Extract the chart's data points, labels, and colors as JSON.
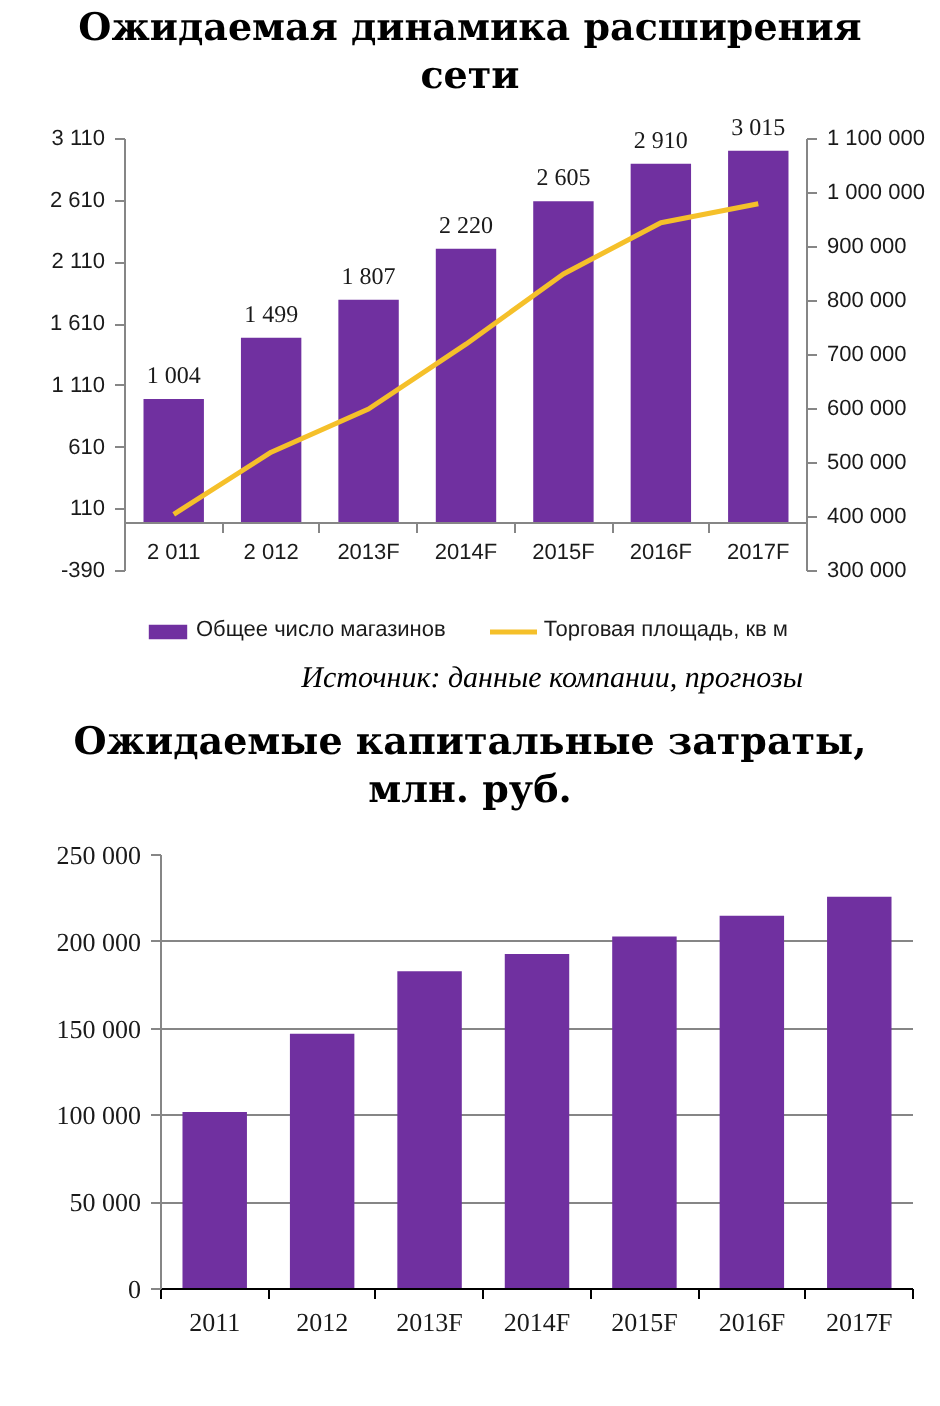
{
  "chart_data": [
    {
      "type": "bar",
      "title": "Ожидаемая динамика расширения сети",
      "categories": [
        "2 011",
        "2 012",
        "2013F",
        "2014F",
        "2015F",
        "2016F",
        "2017F"
      ],
      "series": [
        {
          "name": "Общее число магазинов",
          "type": "bar",
          "color": "#7030a0",
          "values": [
            1004,
            1499,
            1807,
            2220,
            2605,
            2910,
            3015
          ],
          "value_labels": [
            "1 004",
            "1 499",
            "1 807",
            "2 220",
            "2 605",
            "2 910",
            "3 015"
          ]
        },
        {
          "name": "Торговая площадь, кв м",
          "type": "line",
          "axis": "y2",
          "color": "#f5c02a",
          "values": [
            405000,
            520000,
            600000,
            720000,
            850000,
            945000,
            980000
          ]
        }
      ],
      "ylim": [
        -390,
        3110
      ],
      "yticks": [
        -390,
        110,
        610,
        {
          "value": 1110,
          "label": "1 110"
        },
        {
          "value": 1610,
          "label": "1 610"
        },
        {
          "value": 2110,
          "label": "2 110"
        },
        {
          "value": 2610,
          "label": "2 610"
        },
        {
          "value": 3110,
          "label": "3 110"
        }
      ],
      "y2lim": [
        300000,
        1100000
      ],
      "y2ticks": [
        {
          "value": 300000,
          "label": "300 000"
        },
        {
          "value": 400000,
          "label": "400 000"
        },
        {
          "value": 500000,
          "label": "500 000"
        },
        {
          "value": 600000,
          "label": "600 000"
        },
        {
          "value": 700000,
          "label": "700 000"
        },
        {
          "value": 800000,
          "label": "800 000"
        },
        {
          "value": 900000,
          "label": "900 000"
        },
        {
          "value": 1000000,
          "label": "1 000 000"
        },
        {
          "value": 1100000,
          "label": "1 100 000"
        }
      ],
      "legend": "bottom",
      "annotations": [
        "Источник: данные компании, прогнозы"
      ]
    },
    {
      "type": "bar",
      "title": "Ожидаемые капитальные затраты, млн. руб.",
      "categories": [
        "2011",
        "2012",
        "2013F",
        "2014F",
        "2015F",
        "2016F",
        "2017F"
      ],
      "values": [
        102000,
        147000,
        183000,
        193000,
        203000,
        215000,
        226000
      ],
      "color": "#7030a0",
      "ylim": [
        0,
        250000
      ],
      "yticks": [
        0,
        {
          "value": 50000,
          "label": "50 000"
        },
        {
          "value": 100000,
          "label": "100 000"
        },
        {
          "value": 150000,
          "label": "150 000"
        },
        {
          "value": 200000,
          "label": "200 000"
        },
        {
          "value": 250000,
          "label": "250 000"
        }
      ],
      "grid": "y"
    }
  ]
}
